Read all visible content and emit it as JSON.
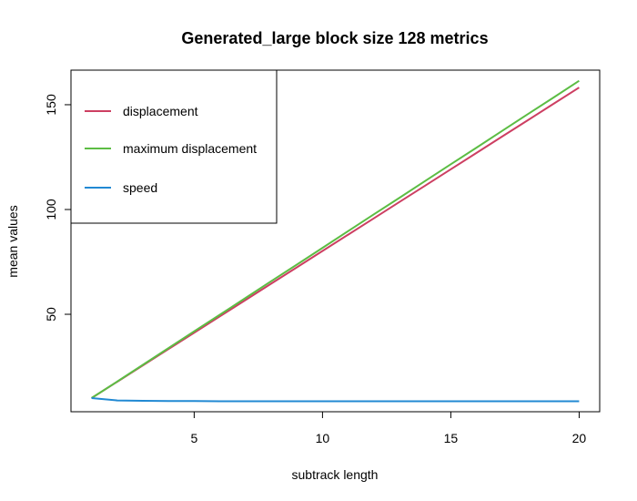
{
  "chart_data": {
    "type": "line",
    "title": "Generated_large block size 128 metrics",
    "xlabel": "subtrack length",
    "ylabel": "mean values",
    "xlim": [
      0.2,
      20.8
    ],
    "ylim": [
      3.5,
      166.5
    ],
    "x_ticks": [
      5,
      10,
      15,
      20
    ],
    "y_ticks": [
      50,
      100,
      150
    ],
    "grid": false,
    "legend_position": "top-left",
    "x": [
      1,
      2,
      3,
      4,
      5,
      6,
      7,
      8,
      9,
      10,
      11,
      12,
      13,
      14,
      15,
      16,
      17,
      18,
      19,
      20
    ],
    "series": [
      {
        "name": "displacement",
        "color": "#cd3f62",
        "values": [
          10,
          17.8,
          25.6,
          33.4,
          41.2,
          49.0,
          56.8,
          64.6,
          72.4,
          80.2,
          88.0,
          95.8,
          103.6,
          111.4,
          119.2,
          127.0,
          134.8,
          142.6,
          150.4,
          158.2
        ]
      },
      {
        "name": "maximum displacement",
        "color": "#5cbd44",
        "values": [
          10,
          17.9,
          25.9,
          33.9,
          41.9,
          49.8,
          57.8,
          65.8,
          73.7,
          81.7,
          89.7,
          97.7,
          105.6,
          113.6,
          121.6,
          129.5,
          137.5,
          145.5,
          153.4,
          161.4
        ]
      },
      {
        "name": "speed",
        "color": "#2189d3",
        "values": [
          10,
          8.9,
          8.7,
          8.6,
          8.6,
          8.5,
          8.5,
          8.5,
          8.5,
          8.5,
          8.5,
          8.5,
          8.5,
          8.5,
          8.5,
          8.5,
          8.5,
          8.5,
          8.5,
          8.5
        ]
      }
    ]
  }
}
